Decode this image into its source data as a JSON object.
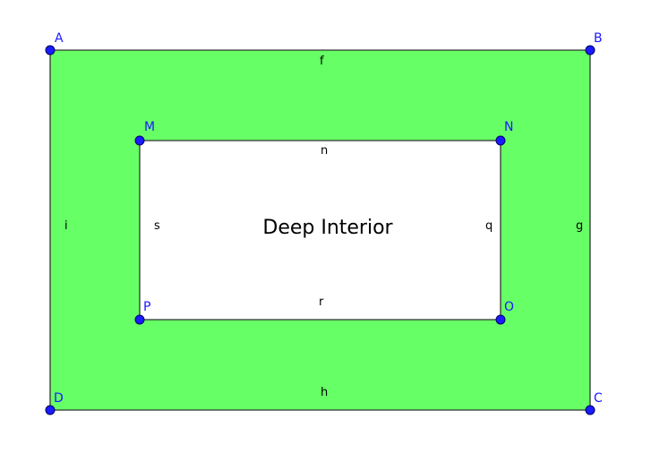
{
  "diagram": {
    "title": "Deep Interior",
    "colors": {
      "outer_fill": "#66ff66",
      "inner_fill": "#ffffff",
      "edge": "#333333",
      "point_fill": "#1a1aff",
      "point_stroke": "#000066",
      "point_label": "#1a1aff",
      "segment_label": "#000000"
    },
    "points": {
      "A": "A",
      "B": "B",
      "C": "C",
      "D": "D",
      "M": "M",
      "N": "N",
      "O": "O",
      "P": "P"
    },
    "segments": {
      "f": "f",
      "g": "g",
      "h": "h",
      "i": "i",
      "n": "n",
      "q": "q",
      "r": "r",
      "s": "s"
    }
  }
}
